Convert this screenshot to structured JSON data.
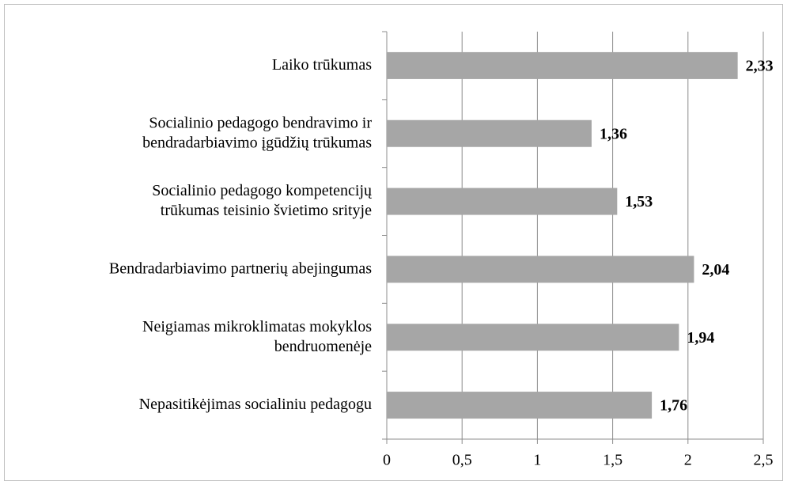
{
  "chart_data": {
    "type": "bar",
    "orientation": "horizontal",
    "categories": [
      "Laiko trūkumas",
      "Socialinio pedagogo bendravimo ir\nbendradarbiavimo įgūdžių trūkumas",
      "Socialinio pedagogo kompetencijų\ntrūkumas teisinio švietimo srityje",
      "Bendradarbiavimo partnerių abejingumas",
      "Neigiamas mikroklimatas mokyklos\nbendruomenėje",
      "Nepasitikėjimas socialiniu pedagogu"
    ],
    "values": [
      2.33,
      1.36,
      1.53,
      2.04,
      1.94,
      1.76
    ],
    "value_labels": [
      "2,33",
      "1,36",
      "1,53",
      "2,04",
      "1,94",
      "1,76"
    ],
    "color": "#a6a6a6",
    "xlim": [
      0,
      2.5
    ],
    "xticks": [
      0,
      {
        "value": 0.5,
        "label": "0,5"
      },
      1,
      {
        "value": 1.5,
        "label": "1,5"
      },
      2,
      {
        "value": 2.5,
        "label": "2,5"
      }
    ],
    "grid": true
  }
}
